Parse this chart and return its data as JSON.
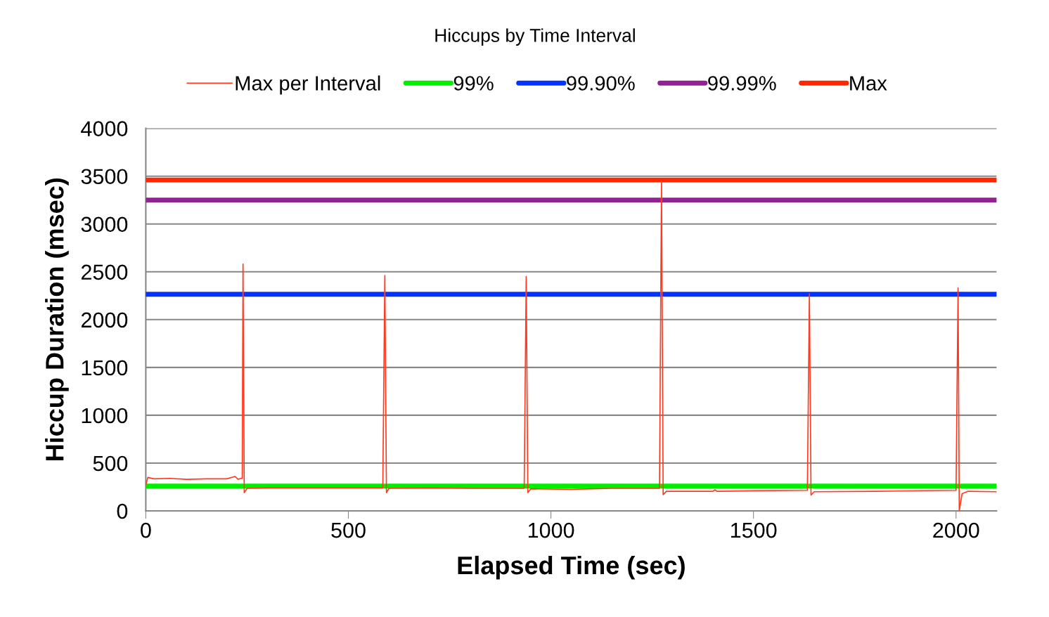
{
  "chart_data": {
    "type": "line",
    "title": "Hiccups by Time Interval",
    "xlabel": "Elapsed Time (sec)",
    "ylabel": "Hiccup Duration (msec)",
    "x": [
      0,
      5,
      20,
      60,
      100,
      150,
      200,
      220,
      228,
      235,
      238,
      240,
      243,
      250,
      300,
      400,
      500,
      585,
      590,
      594,
      600,
      700,
      800,
      934,
      939,
      943,
      950,
      1050,
      1150,
      1268,
      1273,
      1277,
      1285,
      1400,
      1405,
      1410,
      1500,
      1633,
      1638,
      1642,
      1650,
      1800,
      2000,
      2005,
      2008,
      2015,
      2030,
      2100
    ],
    "series": [
      {
        "name": "Max per Interval",
        "color": "#ff3a1f",
        "values": [
          270,
          350,
          335,
          340,
          330,
          335,
          335,
          360,
          330,
          340,
          340,
          2580,
          190,
          235,
          240,
          240,
          240,
          240,
          2460,
          190,
          235,
          240,
          235,
          235,
          2450,
          190,
          230,
          225,
          235,
          235,
          3450,
          170,
          205,
          205,
          220,
          205,
          210,
          215,
          2270,
          165,
          200,
          205,
          215,
          2330,
          0,
          180,
          205,
          200
        ]
      },
      {
        "name": "99%",
        "color": "#00ee00",
        "values": [
          260,
          260,
          260,
          260,
          260,
          260,
          260,
          260,
          260,
          260,
          260,
          260,
          260,
          260,
          260,
          260,
          260,
          260,
          260,
          260,
          260,
          260,
          260,
          260,
          260,
          260,
          260,
          260,
          260,
          260,
          260,
          260,
          260,
          260,
          260,
          260,
          260,
          260,
          260,
          260,
          260,
          260,
          260,
          260,
          260,
          260,
          260,
          260
        ]
      },
      {
        "name": "99.90%",
        "color": "#0433ff",
        "values": [
          2265,
          2265,
          2265,
          2265,
          2265,
          2265,
          2265,
          2265,
          2265,
          2265,
          2265,
          2265,
          2265,
          2265,
          2265,
          2265,
          2265,
          2265,
          2265,
          2265,
          2265,
          2265,
          2265,
          2265,
          2265,
          2265,
          2265,
          2265,
          2265,
          2265,
          2265,
          2265,
          2265,
          2265,
          2265,
          2265,
          2265,
          2265,
          2265,
          2265,
          2265,
          2265,
          2265,
          2265,
          2265,
          2265,
          2265,
          2265
        ]
      },
      {
        "name": "99.99%",
        "color": "#942193",
        "values": [
          3250,
          3250,
          3250,
          3250,
          3250,
          3250,
          3250,
          3250,
          3250,
          3250,
          3250,
          3250,
          3250,
          3250,
          3250,
          3250,
          3250,
          3250,
          3250,
          3250,
          3250,
          3250,
          3250,
          3250,
          3250,
          3250,
          3250,
          3250,
          3250,
          3250,
          3250,
          3250,
          3250,
          3250,
          3250,
          3250,
          3250,
          3250,
          3250,
          3250,
          3250,
          3250,
          3250,
          3250,
          3250,
          3250,
          3250,
          3250
        ]
      },
      {
        "name": "Max",
        "color": "#ff2600",
        "values": [
          3460,
          3460,
          3460,
          3460,
          3460,
          3460,
          3460,
          3460,
          3460,
          3460,
          3460,
          3460,
          3460,
          3460,
          3460,
          3460,
          3460,
          3460,
          3460,
          3460,
          3460,
          3460,
          3460,
          3460,
          3460,
          3460,
          3460,
          3460,
          3460,
          3460,
          3460,
          3460,
          3460,
          3460,
          3460,
          3460,
          3460,
          3460,
          3460,
          3460,
          3460,
          3460,
          3460,
          3460,
          3460,
          3460,
          3460,
          3460
        ]
      }
    ],
    "xlim": [
      0,
      2100
    ],
    "xticks": [
      0,
      500,
      1000,
      1500,
      2000
    ],
    "ylim": [
      0,
      4000
    ],
    "yticks": [
      0,
      500,
      1000,
      1500,
      2000,
      2500,
      3000,
      3500,
      4000
    ],
    "grid": "y",
    "legend": "top"
  }
}
